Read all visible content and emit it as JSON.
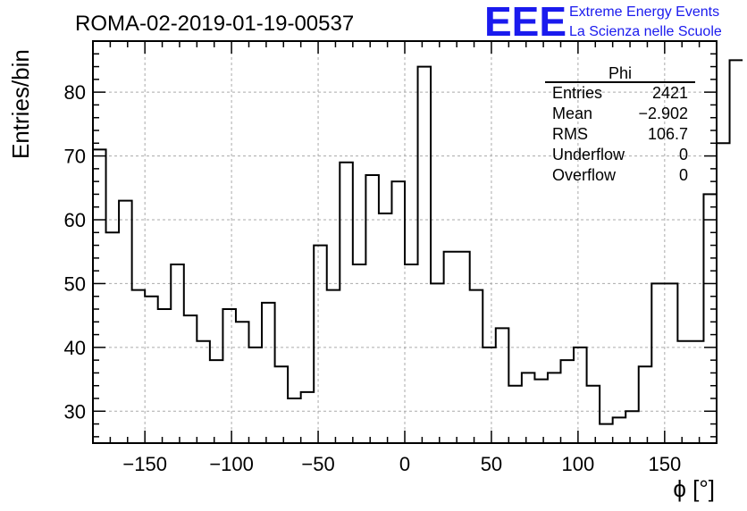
{
  "header": {
    "run_title": "ROMA-02-2019-01-19-00537",
    "logo_mark": "EEE",
    "logo_line1": "Extreme Energy Events",
    "logo_line2": "La Scienza nelle Scuole"
  },
  "stats_box": {
    "name": "Phi",
    "rows": [
      {
        "label": "Entries",
        "value": "2421"
      },
      {
        "label": "Mean",
        "value": "−2.902"
      },
      {
        "label": "RMS",
        "value": "106.7"
      },
      {
        "label": "Underflow",
        "value": "0"
      },
      {
        "label": "Overflow",
        "value": "0"
      }
    ]
  },
  "chart_data": {
    "type": "histogram",
    "title": "ROMA-02-2019-01-19-00537",
    "xlabel": "ϕ [°]",
    "ylabel": "Entries/bin",
    "xlim": [
      -180,
      180
    ],
    "ylim": [
      25,
      88
    ],
    "grid": true,
    "x_ticks": [
      -150,
      -100,
      -50,
      0,
      50,
      100,
      150
    ],
    "y_ticks": [
      30,
      40,
      50,
      60,
      70,
      80
    ],
    "bin_edges_start": -180,
    "bin_width": 7.5,
    "values": [
      71,
      58,
      63,
      49,
      48,
      46,
      53,
      45,
      41,
      38,
      46,
      44,
      40,
      47,
      37,
      32,
      33,
      56,
      49,
      69,
      53,
      67,
      61,
      66,
      53,
      84,
      50,
      55,
      55,
      49,
      40,
      43,
      34,
      36,
      35,
      36,
      38,
      40,
      34,
      28,
      29,
      30,
      37,
      50,
      50,
      41,
      41,
      64,
      72,
      85
    ],
    "line_color": "#000000",
    "grid_color": "#aaaaaa"
  }
}
